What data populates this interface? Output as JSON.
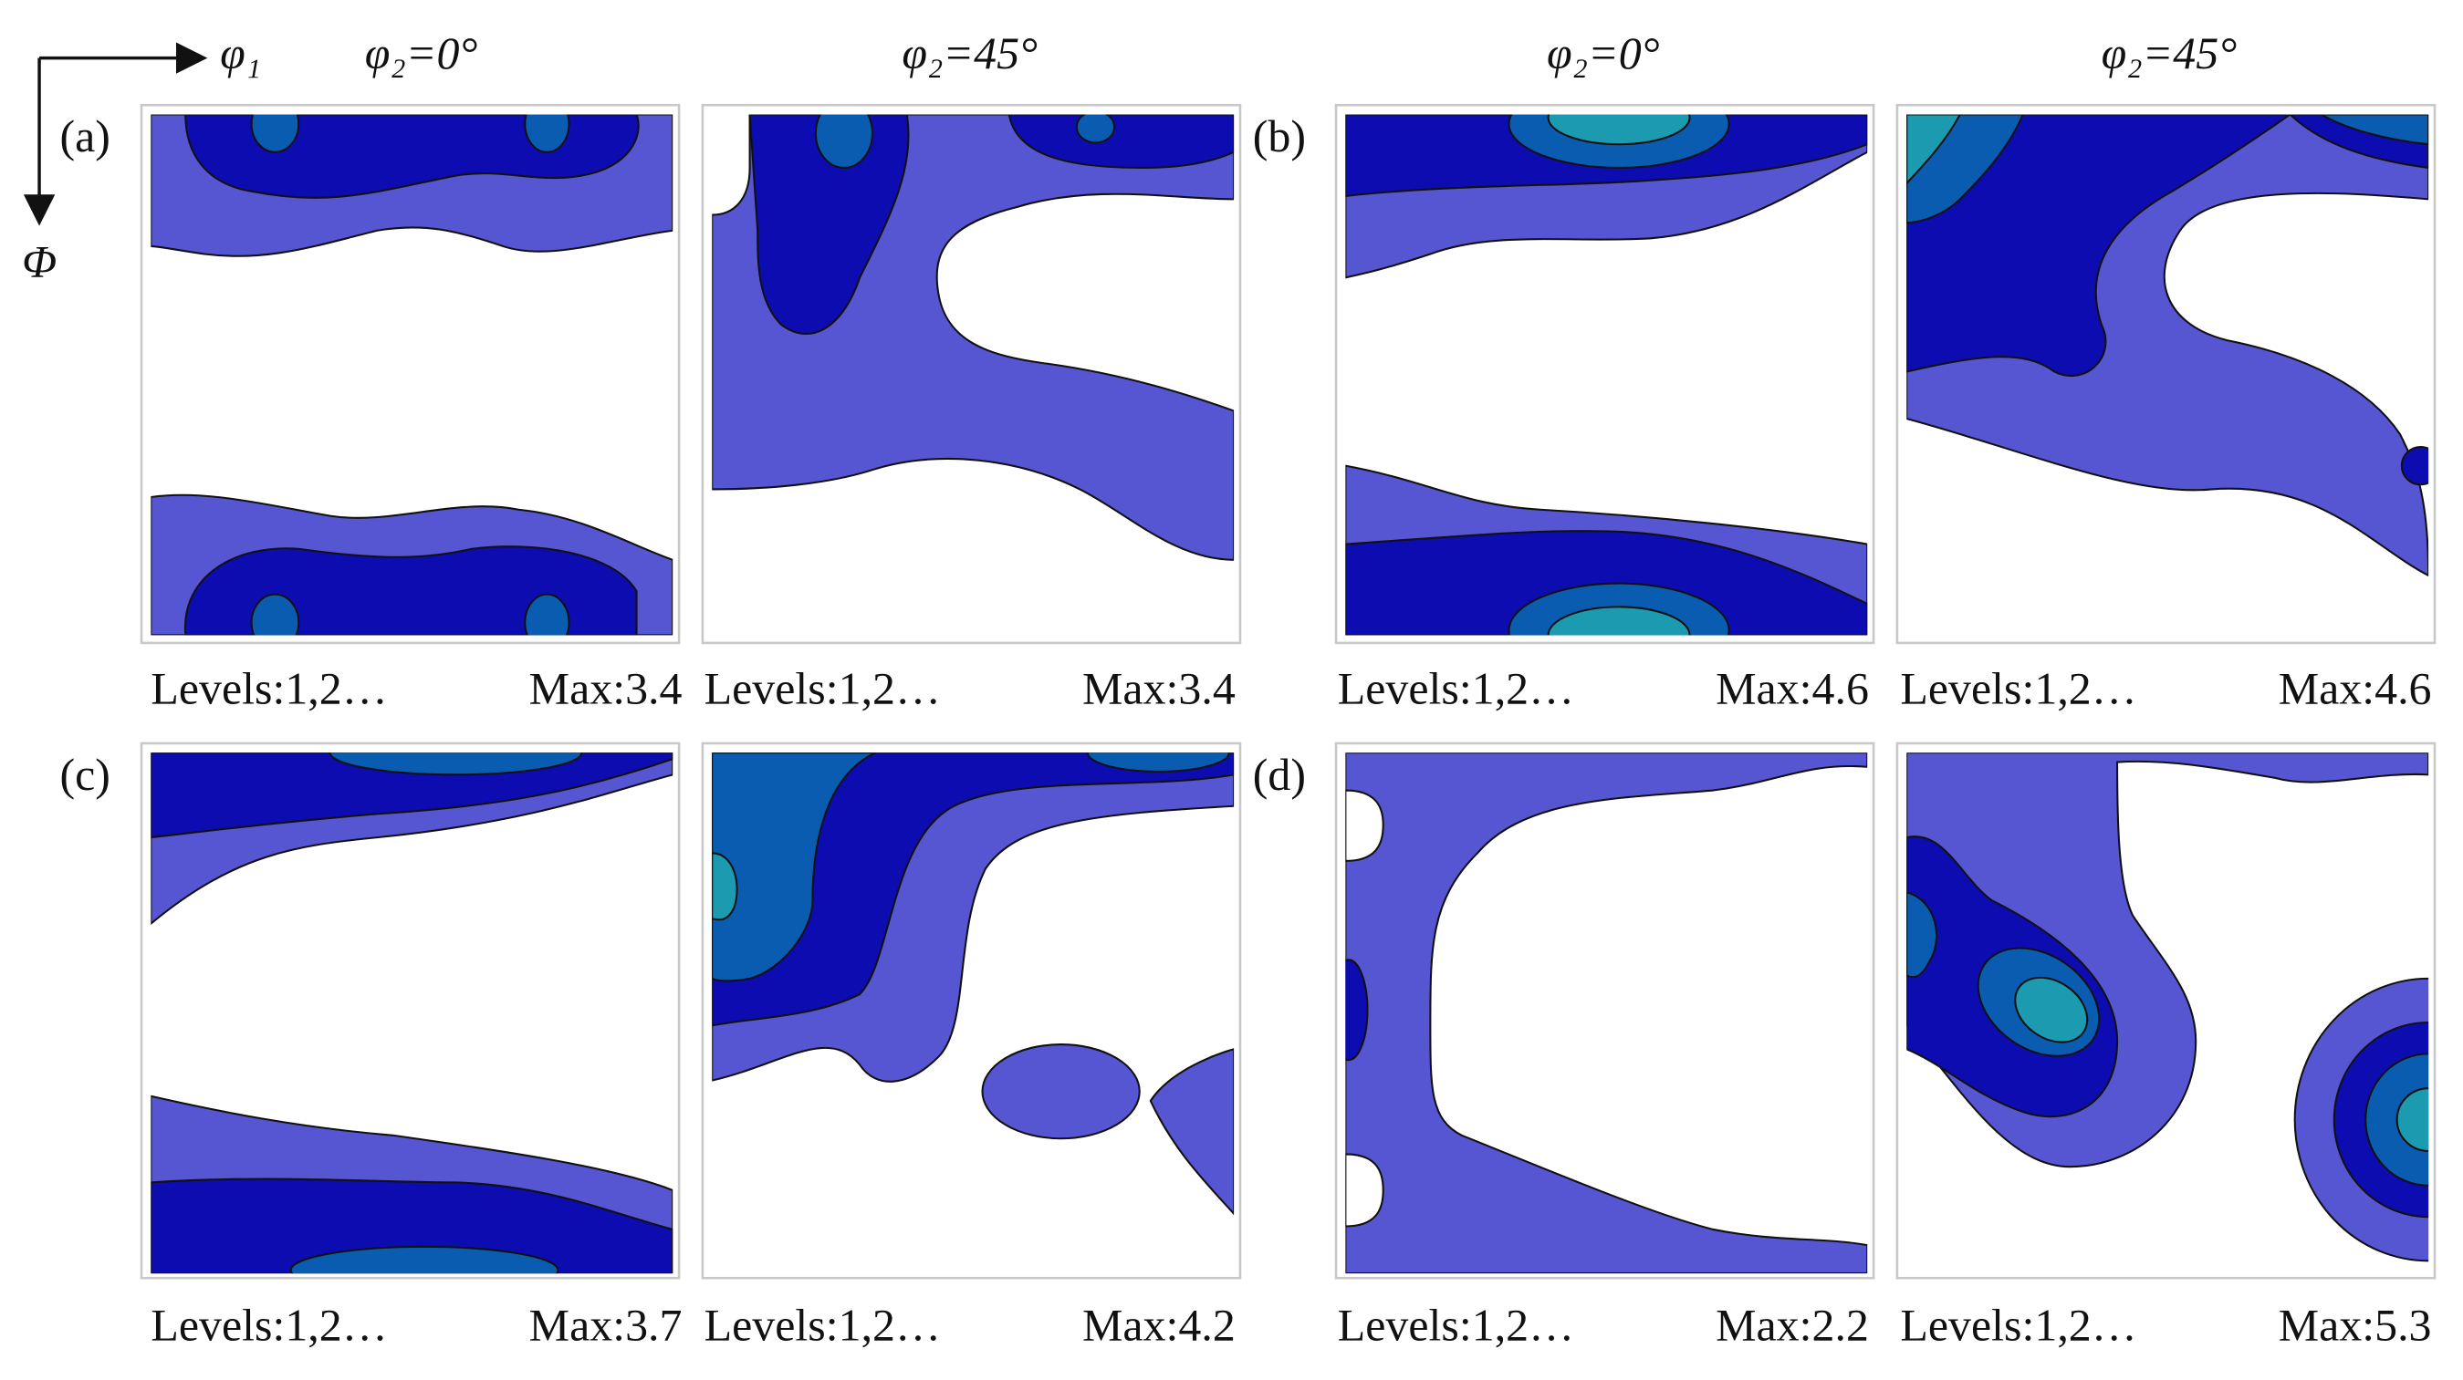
{
  "header": {
    "axis_x": "φ₁",
    "axis_y": "Φ",
    "columns": [
      "φ₂=0°",
      "φ₂=45°",
      "φ₂=0°",
      "φ₂=45°"
    ]
  },
  "panels": [
    {
      "label": "(a)",
      "captions": [
        {
          "levels": "Levels:1,2…",
          "max": "Max:3.4"
        },
        {
          "levels": "Levels:1,2…",
          "max": "Max:3.4"
        }
      ]
    },
    {
      "label": "(b)",
      "captions": [
        {
          "levels": "Levels:1,2…",
          "max": "Max:4.6"
        },
        {
          "levels": "Levels:1,2…",
          "max": "Max:4.6"
        }
      ]
    },
    {
      "label": "(c)",
      "captions": [
        {
          "levels": "Levels:1,2…",
          "max": "Max:3.7"
        },
        {
          "levels": "Levels:1,2…",
          "max": "Max:4.2"
        }
      ]
    },
    {
      "label": "(d)",
      "captions": [
        {
          "levels": "Levels:1,2…",
          "max": "Max:2.2"
        },
        {
          "levels": "Levels:1,2…",
          "max": "Max:5.3"
        }
      ]
    }
  ]
}
